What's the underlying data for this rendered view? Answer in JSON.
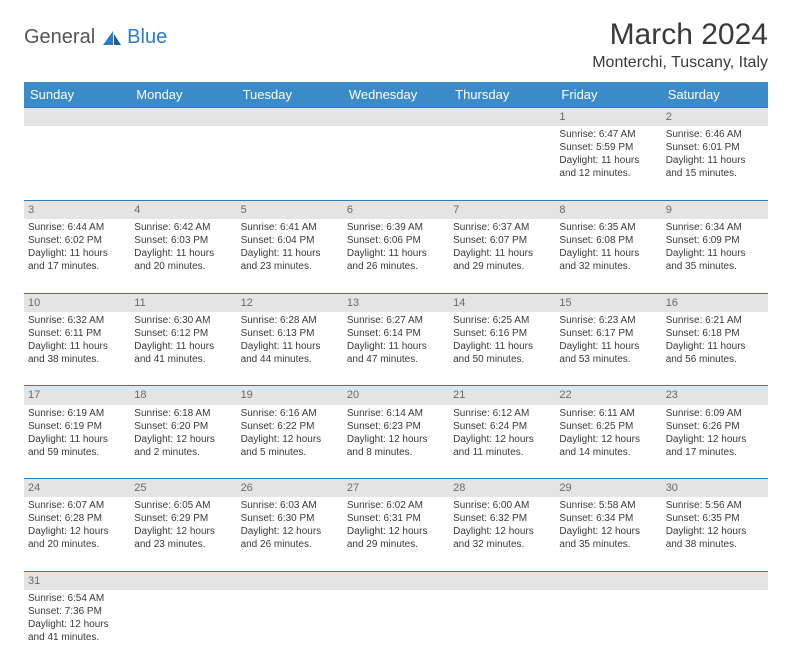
{
  "logo": {
    "text1": "General",
    "text2": "Blue"
  },
  "title": "March 2024",
  "location": "Monterchi, Tuscany, Italy",
  "weekdays": [
    "Sunday",
    "Monday",
    "Tuesday",
    "Wednesday",
    "Thursday",
    "Friday",
    "Saturday"
  ],
  "colors": {
    "header_bg": "#3b8bc8",
    "header_text": "#ffffff",
    "daynum_bg": "#e4e4e4",
    "border": "#2f7ac0",
    "text": "#3a3a3a"
  },
  "weeks": [
    [
      null,
      null,
      null,
      null,
      null,
      {
        "n": "1",
        "sr": "Sunrise: 6:47 AM",
        "ss": "Sunset: 5:59 PM",
        "dl1": "Daylight: 11 hours",
        "dl2": "and 12 minutes."
      },
      {
        "n": "2",
        "sr": "Sunrise: 6:46 AM",
        "ss": "Sunset: 6:01 PM",
        "dl1": "Daylight: 11 hours",
        "dl2": "and 15 minutes."
      }
    ],
    [
      {
        "n": "3",
        "sr": "Sunrise: 6:44 AM",
        "ss": "Sunset: 6:02 PM",
        "dl1": "Daylight: 11 hours",
        "dl2": "and 17 minutes."
      },
      {
        "n": "4",
        "sr": "Sunrise: 6:42 AM",
        "ss": "Sunset: 6:03 PM",
        "dl1": "Daylight: 11 hours",
        "dl2": "and 20 minutes."
      },
      {
        "n": "5",
        "sr": "Sunrise: 6:41 AM",
        "ss": "Sunset: 6:04 PM",
        "dl1": "Daylight: 11 hours",
        "dl2": "and 23 minutes."
      },
      {
        "n": "6",
        "sr": "Sunrise: 6:39 AM",
        "ss": "Sunset: 6:06 PM",
        "dl1": "Daylight: 11 hours",
        "dl2": "and 26 minutes."
      },
      {
        "n": "7",
        "sr": "Sunrise: 6:37 AM",
        "ss": "Sunset: 6:07 PM",
        "dl1": "Daylight: 11 hours",
        "dl2": "and 29 minutes."
      },
      {
        "n": "8",
        "sr": "Sunrise: 6:35 AM",
        "ss": "Sunset: 6:08 PM",
        "dl1": "Daylight: 11 hours",
        "dl2": "and 32 minutes."
      },
      {
        "n": "9",
        "sr": "Sunrise: 6:34 AM",
        "ss": "Sunset: 6:09 PM",
        "dl1": "Daylight: 11 hours",
        "dl2": "and 35 minutes."
      }
    ],
    [
      {
        "n": "10",
        "sr": "Sunrise: 6:32 AM",
        "ss": "Sunset: 6:11 PM",
        "dl1": "Daylight: 11 hours",
        "dl2": "and 38 minutes."
      },
      {
        "n": "11",
        "sr": "Sunrise: 6:30 AM",
        "ss": "Sunset: 6:12 PM",
        "dl1": "Daylight: 11 hours",
        "dl2": "and 41 minutes."
      },
      {
        "n": "12",
        "sr": "Sunrise: 6:28 AM",
        "ss": "Sunset: 6:13 PM",
        "dl1": "Daylight: 11 hours",
        "dl2": "and 44 minutes."
      },
      {
        "n": "13",
        "sr": "Sunrise: 6:27 AM",
        "ss": "Sunset: 6:14 PM",
        "dl1": "Daylight: 11 hours",
        "dl2": "and 47 minutes."
      },
      {
        "n": "14",
        "sr": "Sunrise: 6:25 AM",
        "ss": "Sunset: 6:16 PM",
        "dl1": "Daylight: 11 hours",
        "dl2": "and 50 minutes."
      },
      {
        "n": "15",
        "sr": "Sunrise: 6:23 AM",
        "ss": "Sunset: 6:17 PM",
        "dl1": "Daylight: 11 hours",
        "dl2": "and 53 minutes."
      },
      {
        "n": "16",
        "sr": "Sunrise: 6:21 AM",
        "ss": "Sunset: 6:18 PM",
        "dl1": "Daylight: 11 hours",
        "dl2": "and 56 minutes."
      }
    ],
    [
      {
        "n": "17",
        "sr": "Sunrise: 6:19 AM",
        "ss": "Sunset: 6:19 PM",
        "dl1": "Daylight: 11 hours",
        "dl2": "and 59 minutes."
      },
      {
        "n": "18",
        "sr": "Sunrise: 6:18 AM",
        "ss": "Sunset: 6:20 PM",
        "dl1": "Daylight: 12 hours",
        "dl2": "and 2 minutes."
      },
      {
        "n": "19",
        "sr": "Sunrise: 6:16 AM",
        "ss": "Sunset: 6:22 PM",
        "dl1": "Daylight: 12 hours",
        "dl2": "and 5 minutes."
      },
      {
        "n": "20",
        "sr": "Sunrise: 6:14 AM",
        "ss": "Sunset: 6:23 PM",
        "dl1": "Daylight: 12 hours",
        "dl2": "and 8 minutes."
      },
      {
        "n": "21",
        "sr": "Sunrise: 6:12 AM",
        "ss": "Sunset: 6:24 PM",
        "dl1": "Daylight: 12 hours",
        "dl2": "and 11 minutes."
      },
      {
        "n": "22",
        "sr": "Sunrise: 6:11 AM",
        "ss": "Sunset: 6:25 PM",
        "dl1": "Daylight: 12 hours",
        "dl2": "and 14 minutes."
      },
      {
        "n": "23",
        "sr": "Sunrise: 6:09 AM",
        "ss": "Sunset: 6:26 PM",
        "dl1": "Daylight: 12 hours",
        "dl2": "and 17 minutes."
      }
    ],
    [
      {
        "n": "24",
        "sr": "Sunrise: 6:07 AM",
        "ss": "Sunset: 6:28 PM",
        "dl1": "Daylight: 12 hours",
        "dl2": "and 20 minutes."
      },
      {
        "n": "25",
        "sr": "Sunrise: 6:05 AM",
        "ss": "Sunset: 6:29 PM",
        "dl1": "Daylight: 12 hours",
        "dl2": "and 23 minutes."
      },
      {
        "n": "26",
        "sr": "Sunrise: 6:03 AM",
        "ss": "Sunset: 6:30 PM",
        "dl1": "Daylight: 12 hours",
        "dl2": "and 26 minutes."
      },
      {
        "n": "27",
        "sr": "Sunrise: 6:02 AM",
        "ss": "Sunset: 6:31 PM",
        "dl1": "Daylight: 12 hours",
        "dl2": "and 29 minutes."
      },
      {
        "n": "28",
        "sr": "Sunrise: 6:00 AM",
        "ss": "Sunset: 6:32 PM",
        "dl1": "Daylight: 12 hours",
        "dl2": "and 32 minutes."
      },
      {
        "n": "29",
        "sr": "Sunrise: 5:58 AM",
        "ss": "Sunset: 6:34 PM",
        "dl1": "Daylight: 12 hours",
        "dl2": "and 35 minutes."
      },
      {
        "n": "30",
        "sr": "Sunrise: 5:56 AM",
        "ss": "Sunset: 6:35 PM",
        "dl1": "Daylight: 12 hours",
        "dl2": "and 38 minutes."
      }
    ],
    [
      {
        "n": "31",
        "sr": "Sunrise: 6:54 AM",
        "ss": "Sunset: 7:36 PM",
        "dl1": "Daylight: 12 hours",
        "dl2": "and 41 minutes."
      },
      null,
      null,
      null,
      null,
      null,
      null
    ]
  ]
}
